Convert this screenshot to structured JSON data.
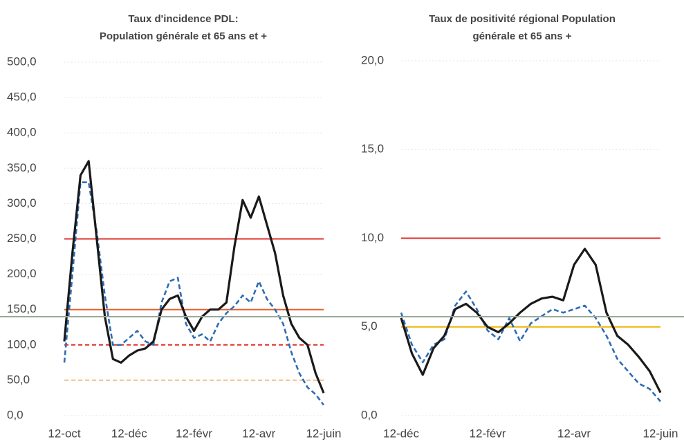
{
  "chart_data": [
    {
      "type": "line",
      "title": [
        "Taux d'incidence PDL:",
        "Population générale et 65 ans et +"
      ],
      "categories": [
        "12-oct",
        null,
        null,
        null,
        null,
        null,
        null,
        null,
        "12-déc",
        null,
        null,
        null,
        null,
        null,
        null,
        null,
        "12-févr",
        null,
        null,
        null,
        null,
        null,
        null,
        null,
        "12-avr",
        null,
        null,
        null,
        null,
        null,
        null,
        null,
        "12-juin"
      ],
      "series": [
        {
          "color": "#1a1a1a",
          "dashed": false,
          "values": [
            105,
            230,
            340,
            360,
            250,
            140,
            80,
            75,
            85,
            92,
            95,
            105,
            150,
            165,
            170,
            140,
            120,
            140,
            150,
            150,
            160,
            240,
            305,
            280,
            310,
            270,
            230,
            170,
            130,
            110,
            100,
            60,
            32
          ]
        },
        {
          "color": "#2e6db4",
          "dashed": true,
          "values": [
            75,
            200,
            330,
            330,
            260,
            170,
            100,
            100,
            110,
            120,
            105,
            100,
            160,
            190,
            195,
            130,
            110,
            115,
            105,
            130,
            145,
            155,
            170,
            160,
            190,
            165,
            150,
            130,
            90,
            60,
            40,
            30,
            15
          ]
        }
      ],
      "reference_lines": [
        {
          "value": 250,
          "color": "#e0302a",
          "dashed": false
        },
        {
          "value": 150,
          "color": "#e8602a",
          "dashed": false
        },
        {
          "value": 100,
          "color": "#e0302a",
          "dashed": true
        },
        {
          "value": 50,
          "color": "#f5c08a",
          "dashed": true
        }
      ],
      "ylim": [
        0,
        500
      ],
      "yticks": [
        {
          "value": 0,
          "label": "0,0"
        },
        {
          "value": 50,
          "label": "50,0"
        },
        {
          "value": 100,
          "label": "100,0"
        },
        {
          "value": 150,
          "label": "150,0"
        },
        {
          "value": 200,
          "label": "200,0"
        },
        {
          "value": 250,
          "label": "250,0"
        },
        {
          "value": 300,
          "label": "300,0"
        },
        {
          "value": 350,
          "label": "350,0"
        },
        {
          "value": 400,
          "label": "400,0"
        },
        {
          "value": 450,
          "label": "450,0"
        },
        {
          "value": 500,
          "label": "500,0"
        }
      ],
      "grid": true
    },
    {
      "type": "line",
      "title": [
        "Taux de positivité régional Population",
        "générale et 65 ans +"
      ],
      "categories": [
        "12-déc",
        null,
        null,
        null,
        null,
        null,
        null,
        null,
        "12-févr",
        null,
        null,
        null,
        null,
        null,
        null,
        null,
        "12-avr",
        null,
        null,
        null,
        null,
        null,
        null,
        null,
        "12-juin"
      ],
      "series": [
        {
          "color": "#1a1a1a",
          "dashed": false,
          "values": [
            5.5,
            3.5,
            2.3,
            3.8,
            4.5,
            6.0,
            6.3,
            5.8,
            5.0,
            4.7,
            5.2,
            5.8,
            6.3,
            6.6,
            6.7,
            6.5,
            8.5,
            9.4,
            8.5,
            5.8,
            4.5,
            4.0,
            3.3,
            2.5,
            1.3
          ]
        },
        {
          "color": "#2e6db4",
          "dashed": true,
          "values": [
            5.8,
            4.0,
            3.0,
            4.0,
            4.3,
            6.2,
            7.0,
            6.0,
            4.8,
            4.3,
            5.5,
            4.2,
            5.2,
            5.6,
            6.0,
            5.8,
            6.0,
            6.2,
            5.5,
            4.5,
            3.2,
            2.5,
            1.8,
            1.5,
            0.8
          ]
        }
      ],
      "reference_lines": [
        {
          "value": 10,
          "color": "#e0302a",
          "dashed": false
        },
        {
          "value": 5,
          "color": "#f0b400",
          "dashed": false
        }
      ],
      "ylim": [
        0,
        20
      ],
      "yticks": [
        {
          "value": 0,
          "label": "0,0"
        },
        {
          "value": 5,
          "label": "5,0"
        },
        {
          "value": 10,
          "label": "10,0"
        },
        {
          "value": 15,
          "label": "15,0"
        },
        {
          "value": 20,
          "label": "20,0"
        }
      ],
      "grid": true
    }
  ]
}
